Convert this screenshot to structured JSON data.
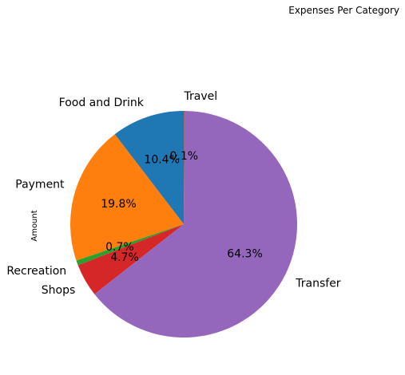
{
  "chart_data": {
    "type": "pie",
    "title": "Expenses Per Category",
    "ylabel": "Amount",
    "categories": [
      "Food and Drink",
      "Payment",
      "Recreation",
      "Shops",
      "Transfer",
      "Travel"
    ],
    "values": [
      10.4,
      19.8,
      0.7,
      4.7,
      64.3,
      0.1
    ],
    "value_labels": [
      "10.4%",
      "19.8%",
      "0.7%",
      "4.7%",
      "64.3%",
      "0.1%"
    ],
    "colors": [
      "#1f77b4",
      "#ff7f0e",
      "#2ca02c",
      "#d62728",
      "#9467bd",
      "#8c564b"
    ],
    "start_angle_deg": 90,
    "direction": "counterclockwise",
    "legend": "none"
  }
}
